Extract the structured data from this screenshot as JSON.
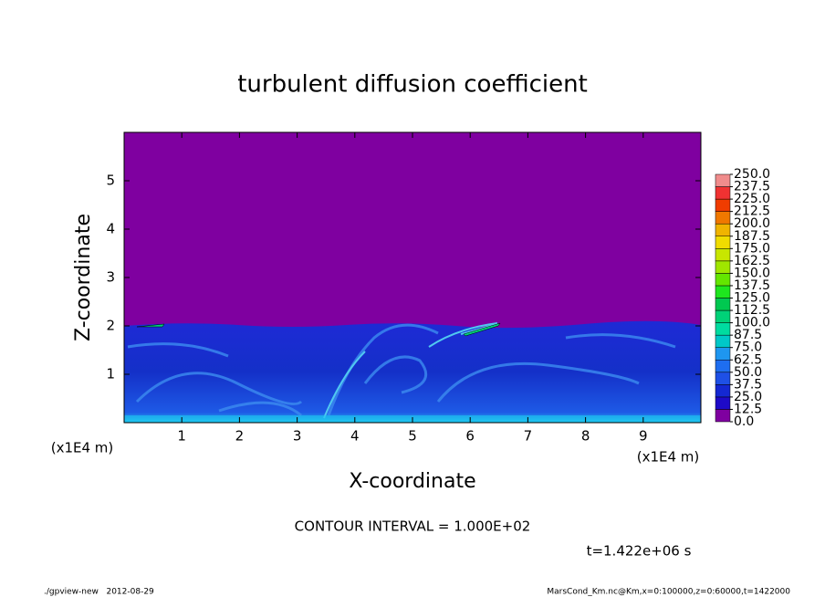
{
  "chart_data": {
    "type": "contour",
    "title": "turbulent diffusion coefficient",
    "x_label": "X-coordinate",
    "y_label": "Z-coordinate",
    "x_unit": "(x1E4 m)",
    "x_unit_right": "(x1E4 m)",
    "xlim": [
      0,
      10
    ],
    "ylim": [
      0,
      6
    ],
    "xticks": [
      1,
      2,
      3,
      4,
      5,
      6,
      7,
      8,
      9
    ],
    "yticks": [
      1,
      2,
      3,
      4,
      5
    ],
    "colorbar": {
      "levels": [
        {
          "value": 0,
          "label": "0.0"
        },
        12.5,
        {
          "value": 25,
          "label": "25.0"
        },
        37.5,
        {
          "value": 50,
          "label": "50.0"
        },
        62.5,
        {
          "value": 75,
          "label": "75.0"
        },
        87.5,
        {
          "value": 100,
          "label": "100.0"
        },
        112.5,
        {
          "value": 125,
          "label": "125.0"
        },
        137.5,
        {
          "value": 150,
          "label": "150.0"
        },
        162.5,
        {
          "value": 175,
          "label": "175.0"
        },
        187.5,
        {
          "value": 200,
          "label": "200.0"
        },
        212.5,
        {
          "value": 225,
          "label": "225.0"
        },
        237.5,
        {
          "value": 250,
          "label": "250.0"
        }
      ],
      "colors": [
        "#7f00a0",
        "#1e0ac8",
        "#1428d2",
        "#1e50e6",
        "#1e6ef0",
        "#1e96f0",
        "#00c8c8",
        "#00dca0",
        "#00d278",
        "#00c850",
        "#1ee61e",
        "#64e600",
        "#a0e600",
        "#c8e600",
        "#f0dc00",
        "#f0b400",
        "#f07800",
        "#f03c00",
        "#f03232",
        "#f08c8c"
      ]
    },
    "contour_interval": "CONTOUR INTERVAL = 1.000E+02",
    "time_label": "t=1.422e+06 s",
    "footer_left": "./gpview-new   2012-08-29",
    "footer_right": "MarsCond_Km.nc@Km,x=0:100000,z=0:60000,t=1422000"
  }
}
